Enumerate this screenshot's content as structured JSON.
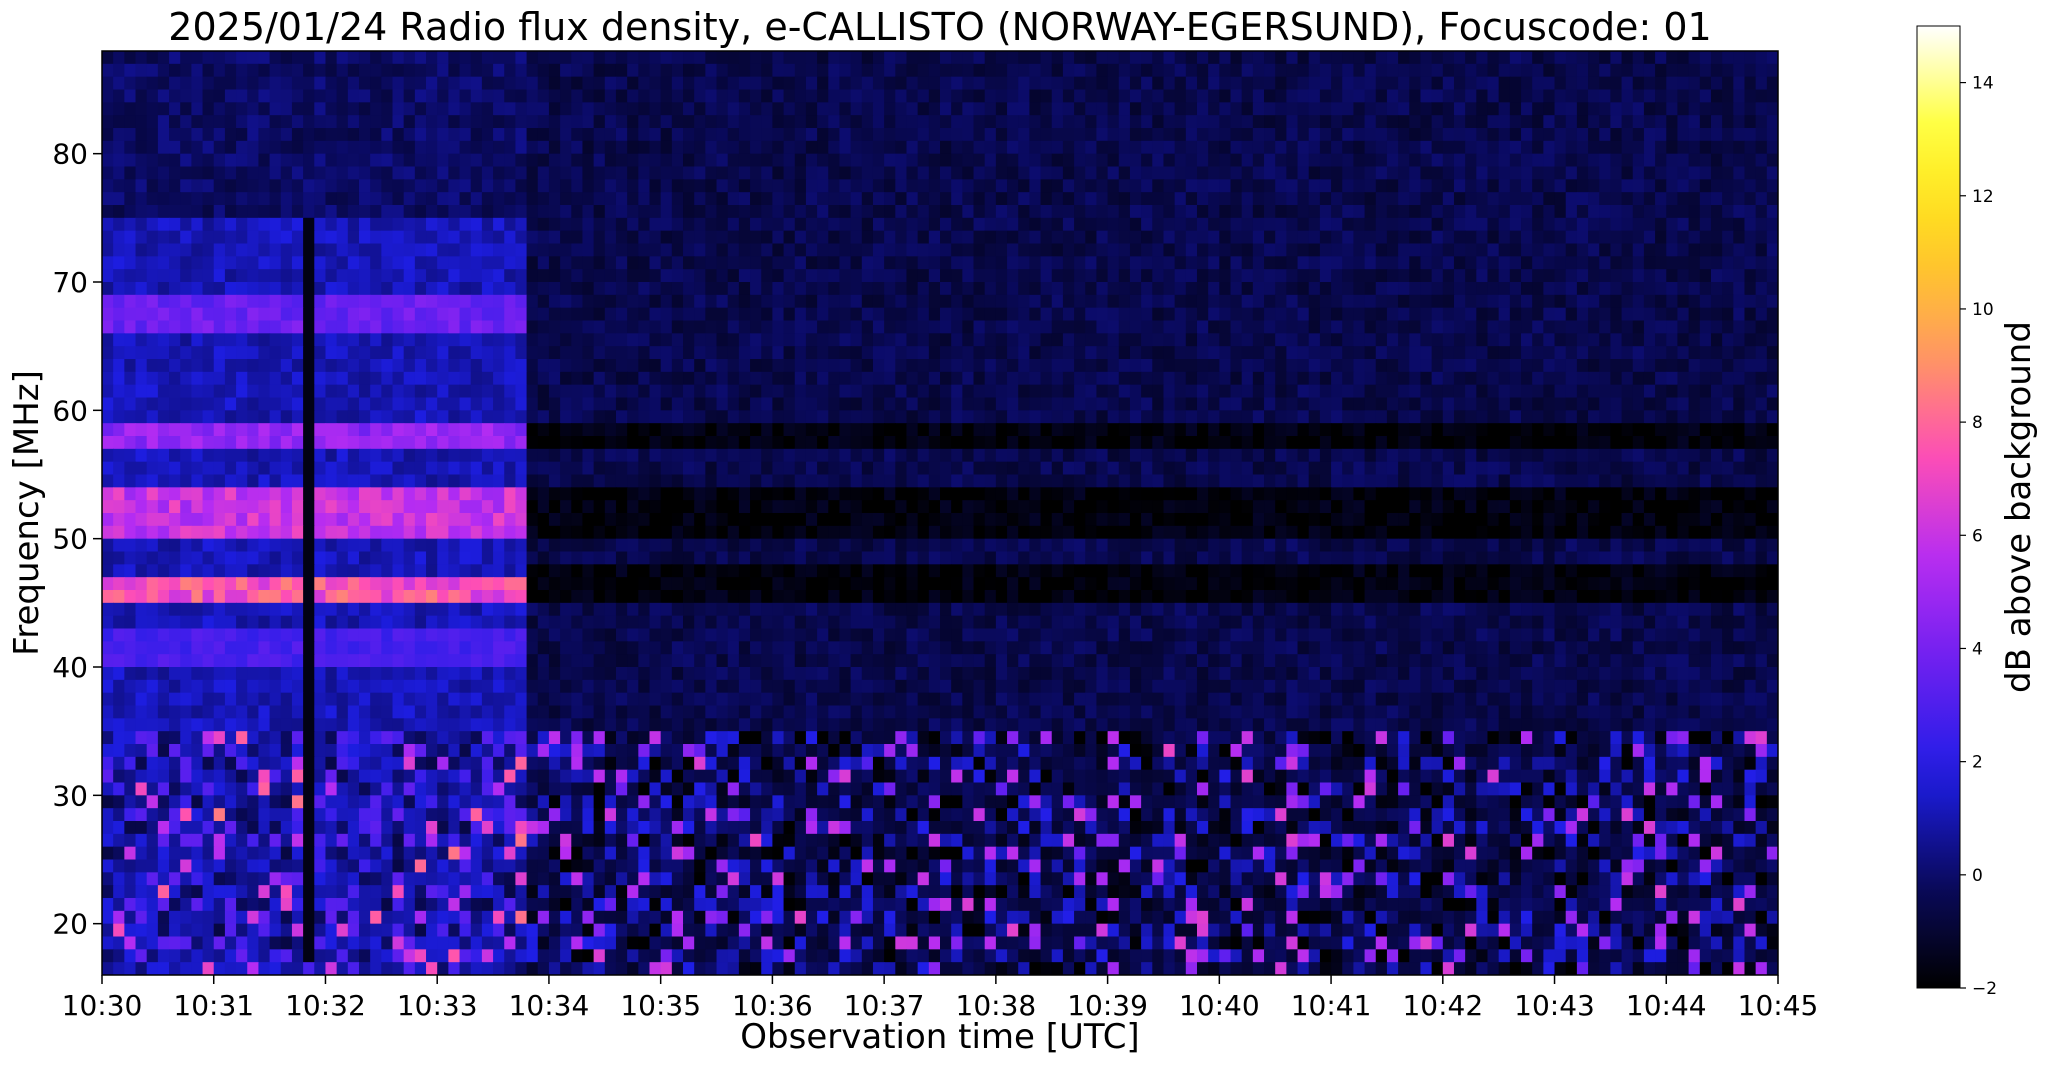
{
  "chart_data": {
    "type": "heatmap",
    "title": "2025/01/24  Radio flux density, e-CALLISTO (NORWAY-EGERSUND), Focuscode: 01",
    "xlabel": "Observation time [UTC]",
    "ylabel": "Frequency [MHz]",
    "x_ticks": [
      "10:30",
      "10:31",
      "10:32",
      "10:33",
      "10:34",
      "10:35",
      "10:36",
      "10:37",
      "10:38",
      "10:39",
      "10:40",
      "10:41",
      "10:42",
      "10:43",
      "10:44",
      "10:45"
    ],
    "xlim_minutes": [
      0,
      15
    ],
    "y_ticks": [
      20,
      30,
      40,
      50,
      60,
      70,
      80
    ],
    "ylim": [
      16,
      88
    ],
    "colorbar": {
      "label": "dB above background",
      "ticks": [
        -2,
        0,
        2,
        4,
        6,
        8,
        10,
        12,
        14
      ],
      "range": [
        -2,
        15
      ],
      "colormap": [
        "#000000",
        "#0a0a60",
        "#1e1ee6",
        "#6a1ff0",
        "#b52cf2",
        "#ff4fb4",
        "#ff9e5a",
        "#ffd21e",
        "#ffff30",
        "#ffffff"
      ]
    },
    "background_level_db": -0.5,
    "features": [
      {
        "label": "quiet-period emission bands",
        "t_start": 0,
        "t_end": 3.8,
        "f_ranges": [
          [
            45,
            47,
            8
          ],
          [
            50,
            54,
            6.5
          ],
          [
            57,
            59,
            5
          ],
          [
            66,
            69,
            4
          ],
          [
            40,
            43,
            3
          ]
        ]
      },
      {
        "label": "instrument gap",
        "t_start": 1.82,
        "t_end": 1.92,
        "f_range": [
          17,
          75
        ]
      },
      {
        "label": "low-frequency interference",
        "t_start": 0,
        "t_end": 15,
        "f_range": [
          16,
          35
        ]
      }
    ]
  }
}
